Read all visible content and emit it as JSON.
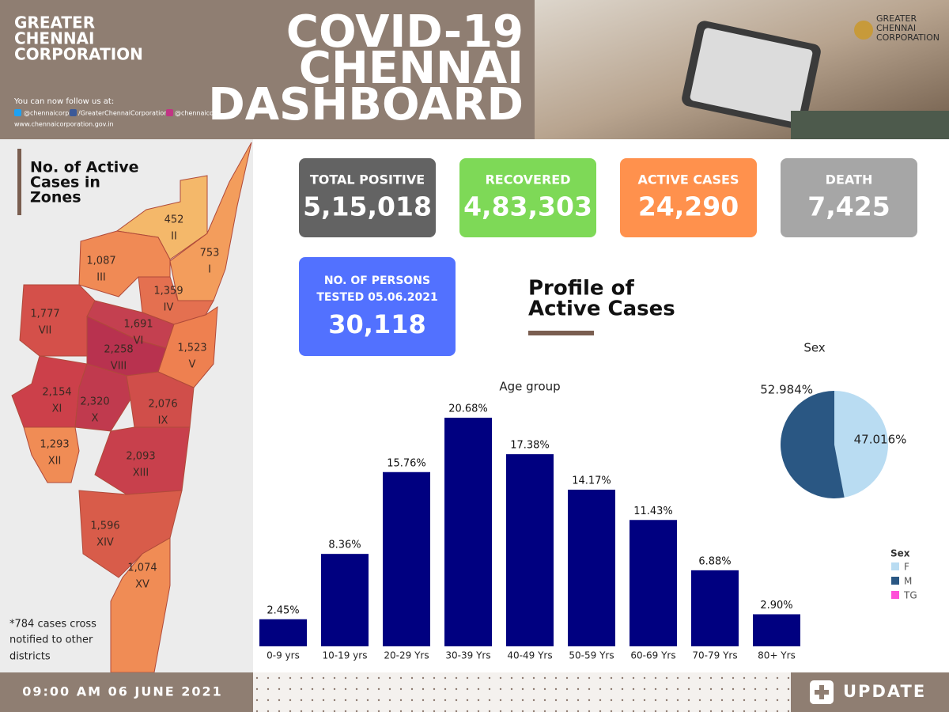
{
  "header": {
    "org": [
      "GREATER",
      "CHENNAI",
      "CORPORATION"
    ],
    "follow": "You can now follow us at:",
    "twitter": "@chennaicorp",
    "facebook": "/GreaterChennaiCorporation",
    "instagram": "@chennaicorp",
    "website": "www.chennaicorporation.gov.in",
    "title": [
      "COVID-19",
      "CHENNAI",
      "DASHBOARD"
    ],
    "logo": [
      "GREATER",
      "CHENNAI",
      "CORPORATION"
    ]
  },
  "map": {
    "title": [
      "No. of Active",
      "Cases in",
      "Zones"
    ],
    "note": [
      "*784 cases cross",
      "notified to other",
      "districts"
    ],
    "zones": [
      {
        "value": "452",
        "zone": "II"
      },
      {
        "value": "753",
        "zone": "I"
      },
      {
        "value": "1,087",
        "zone": "III"
      },
      {
        "value": "1,359",
        "zone": "IV"
      },
      {
        "value": "1,777",
        "zone": "VII"
      },
      {
        "value": "1,691",
        "zone": "VI"
      },
      {
        "value": "1,523",
        "zone": "V"
      },
      {
        "value": "2,258",
        "zone": "VIII"
      },
      {
        "value": "2,154",
        "zone": "XI"
      },
      {
        "value": "2,320",
        "zone": "X"
      },
      {
        "value": "2,076",
        "zone": "IX"
      },
      {
        "value": "1,293",
        "zone": "XII"
      },
      {
        "value": "2,093",
        "zone": "XIII"
      },
      {
        "value": "1,596",
        "zone": "XIV"
      },
      {
        "value": "1,074",
        "zone": "XV"
      }
    ]
  },
  "stats": [
    {
      "label": "TOTAL POSITIVE",
      "value": "5,15,018"
    },
    {
      "label": "RECOVERED",
      "value": "4,83,303"
    },
    {
      "label": "ACTIVE CASES",
      "value": "24,290"
    },
    {
      "label": "DEATH",
      "value": "7,425"
    }
  ],
  "tested": {
    "label": [
      "NO. OF PERSONS",
      "TESTED 05.06.2021"
    ],
    "value": "30,118"
  },
  "profile_title": [
    "Profile of",
    "Active Cases"
  ],
  "chart_data": [
    {
      "type": "bar",
      "title": "Age group",
      "color": "#000080",
      "categories": [
        "0-9 yrs",
        "10-19 yrs",
        "20-29 Yrs",
        "30-39 Yrs",
        "40-49 Yrs",
        "50-59 Yrs",
        "60-69 Yrs",
        "70-79 Yrs",
        "80+ Yrs"
      ],
      "values": [
        2.45,
        8.36,
        15.76,
        20.68,
        17.38,
        14.17,
        11.43,
        6.88,
        2.9
      ],
      "value_labels": [
        "2.45%",
        "8.36%",
        "15.76%",
        "20.68%",
        "17.38%",
        "14.17%",
        "11.43%",
        "6.88%",
        "2.90%"
      ]
    },
    {
      "type": "pie",
      "title": "Sex",
      "legend_title": "Sex",
      "categories": [
        "F",
        "M",
        "TG"
      ],
      "colors": [
        "#b9dcf2",
        "#2a5783",
        "#ff4fd8"
      ],
      "values": [
        47.016,
        52.984,
        0
      ],
      "value_labels": [
        "47.016%",
        "52.984%",
        null
      ]
    }
  ],
  "footer": {
    "time": "09:00 AM 06 JUNE 2021",
    "update": "UPDATE"
  }
}
